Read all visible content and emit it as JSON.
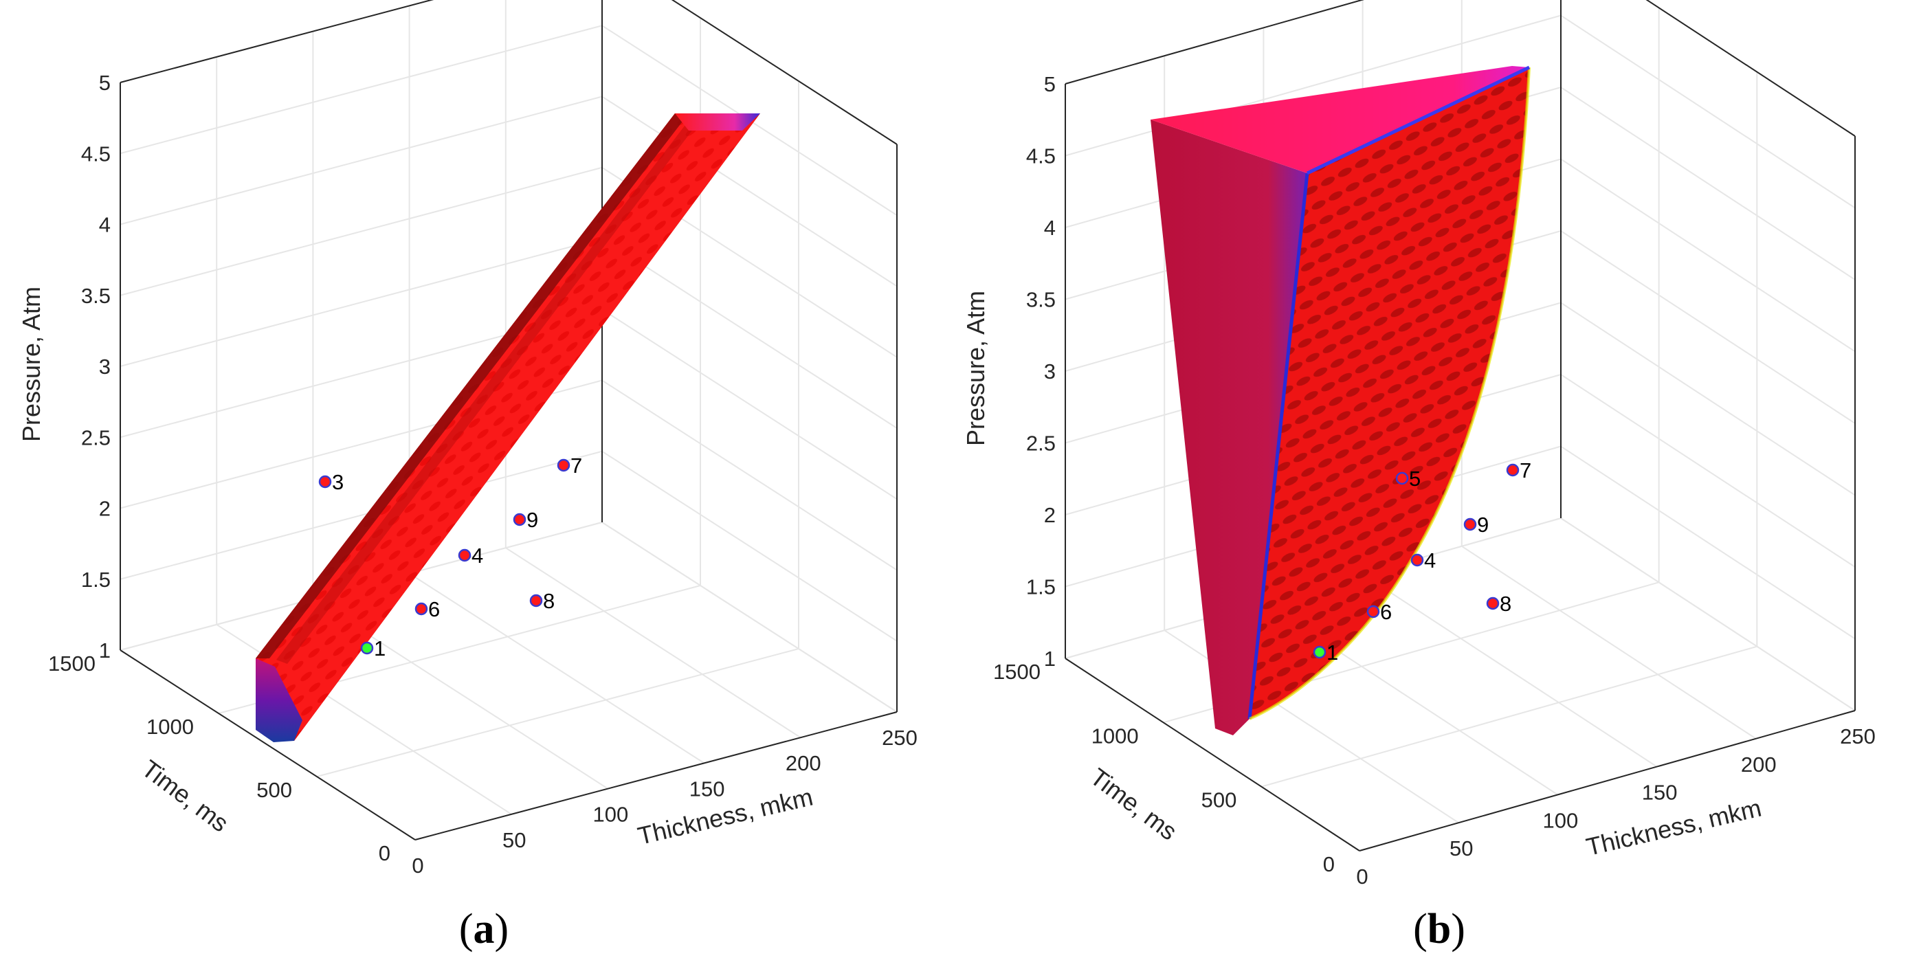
{
  "chart_data": [
    {
      "type": "surface3d",
      "panel_label_open": "(",
      "panel_label_letter": "a",
      "panel_label_close": ")",
      "zlabel": "Pressure, Atm",
      "ylabel": "Time, ms",
      "xlabel": "Thickness, mkm",
      "zticks": [
        "1",
        "1.5",
        "2",
        "2.5",
        "3",
        "3.5",
        "4",
        "4.5",
        "5"
      ],
      "yticks": [
        "0",
        "500",
        "1000",
        "1500"
      ],
      "xticks": [
        "0",
        "50",
        "100",
        "150",
        "200",
        "250"
      ],
      "zlim": [
        1,
        5
      ],
      "ylim": [
        0,
        1500
      ],
      "xlim": [
        0,
        250
      ],
      "surface_color": "#ff1a1a",
      "points": [
        {
          "label": "1",
          "color": "#33ff33"
        },
        {
          "label": "3",
          "color": "#ff1a1a"
        },
        {
          "label": "4",
          "color": "#ff1a1a"
        },
        {
          "label": "6",
          "color": "#ff1a1a"
        },
        {
          "label": "7",
          "color": "#ff1a1a"
        },
        {
          "label": "8",
          "color": "#ff1a1a"
        },
        {
          "label": "9",
          "color": "#ff1a1a"
        }
      ]
    },
    {
      "type": "surface3d",
      "panel_label_open": "(",
      "panel_label_letter": "b",
      "panel_label_close": ")",
      "zlabel": "Pressure, Atm",
      "ylabel": "Time, ms",
      "xlabel": "Thickness, mkm",
      "zticks": [
        "1",
        "1.5",
        "2",
        "2.5",
        "3",
        "3.5",
        "4",
        "4.5",
        "5"
      ],
      "yticks": [
        "0",
        "500",
        "1000",
        "1500"
      ],
      "xticks": [
        "0",
        "50",
        "100",
        "150",
        "200",
        "250"
      ],
      "zlim": [
        1,
        5
      ],
      "ylim": [
        0,
        1500
      ],
      "xlim": [
        0,
        250
      ],
      "surface_color": "#ff1a1a",
      "side_color": "#c8004a",
      "top_color": "#ff1a66",
      "points": [
        {
          "label": "1",
          "color": "#33ff33"
        },
        {
          "label": "5",
          "color": "#ff1a1a"
        },
        {
          "label": "4",
          "color": "#ff1a1a"
        },
        {
          "label": "6",
          "color": "#ff1a1a"
        },
        {
          "label": "7",
          "color": "#ff1a1a"
        },
        {
          "label": "8",
          "color": "#ff1a1a"
        },
        {
          "label": "9",
          "color": "#ff1a1a"
        }
      ]
    }
  ]
}
